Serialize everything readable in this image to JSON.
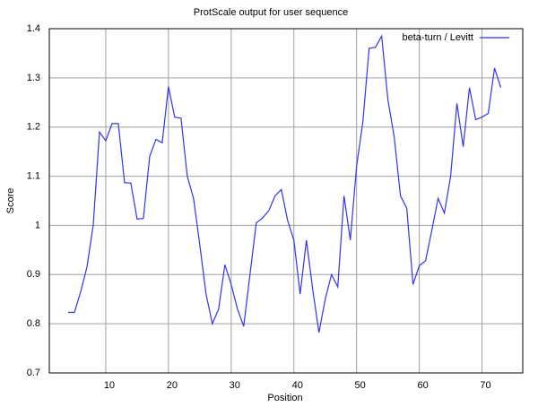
{
  "chart_data": {
    "type": "line",
    "title": "ProtScale output for user sequence",
    "xlabel": "Position",
    "ylabel": "Score",
    "x": [
      4,
      5,
      6,
      7,
      8,
      9,
      10,
      11,
      12,
      13,
      14,
      15,
      16,
      17,
      18,
      19,
      20,
      21,
      22,
      23,
      24,
      25,
      26,
      27,
      28,
      29,
      30,
      31,
      32,
      33,
      34,
      35,
      36,
      37,
      38,
      39,
      40,
      41,
      42,
      43,
      44,
      45,
      46,
      47,
      48,
      49,
      50,
      51,
      52,
      53,
      54,
      55,
      56,
      57,
      58,
      59,
      60,
      61,
      62,
      63,
      64,
      65,
      66,
      67,
      68,
      69,
      70,
      71,
      72,
      73
    ],
    "series": [
      {
        "name": "beta-turn / Levitt",
        "color": "#3333ee",
        "values": [
          0.823,
          0.823,
          0.865,
          0.915,
          1.0,
          1.19,
          1.172,
          1.207,
          1.207,
          1.087,
          1.086,
          1.013,
          1.014,
          1.14,
          1.175,
          1.168,
          1.282,
          1.22,
          1.218,
          1.1,
          1.055,
          0.96,
          0.86,
          0.8,
          0.83,
          0.92,
          0.88,
          0.83,
          0.795,
          0.9,
          1.005,
          1.015,
          1.03,
          1.06,
          1.073,
          1.01,
          0.97,
          0.86,
          0.97,
          0.87,
          0.782,
          0.85,
          0.9,
          0.875,
          1.06,
          0.97,
          1.12,
          1.21,
          1.36,
          1.362,
          1.385,
          1.255,
          1.18,
          1.06,
          1.035,
          0.88,
          0.918,
          0.928,
          0.99,
          1.055,
          1.025,
          1.1,
          1.248,
          1.16,
          1.28,
          1.215,
          1.22,
          1.228,
          1.32,
          1.28
        ]
      }
    ],
    "xlim": [
      1,
      76.5
    ],
    "xticks": [
      10,
      20,
      30,
      40,
      50,
      60,
      70
    ],
    "ylim": [
      0.7,
      1.4
    ],
    "yticks": [
      0.7,
      0.8,
      0.9,
      1,
      1.1,
      1.2,
      1.3,
      1.4
    ],
    "grid": true,
    "legend": "top-right"
  }
}
